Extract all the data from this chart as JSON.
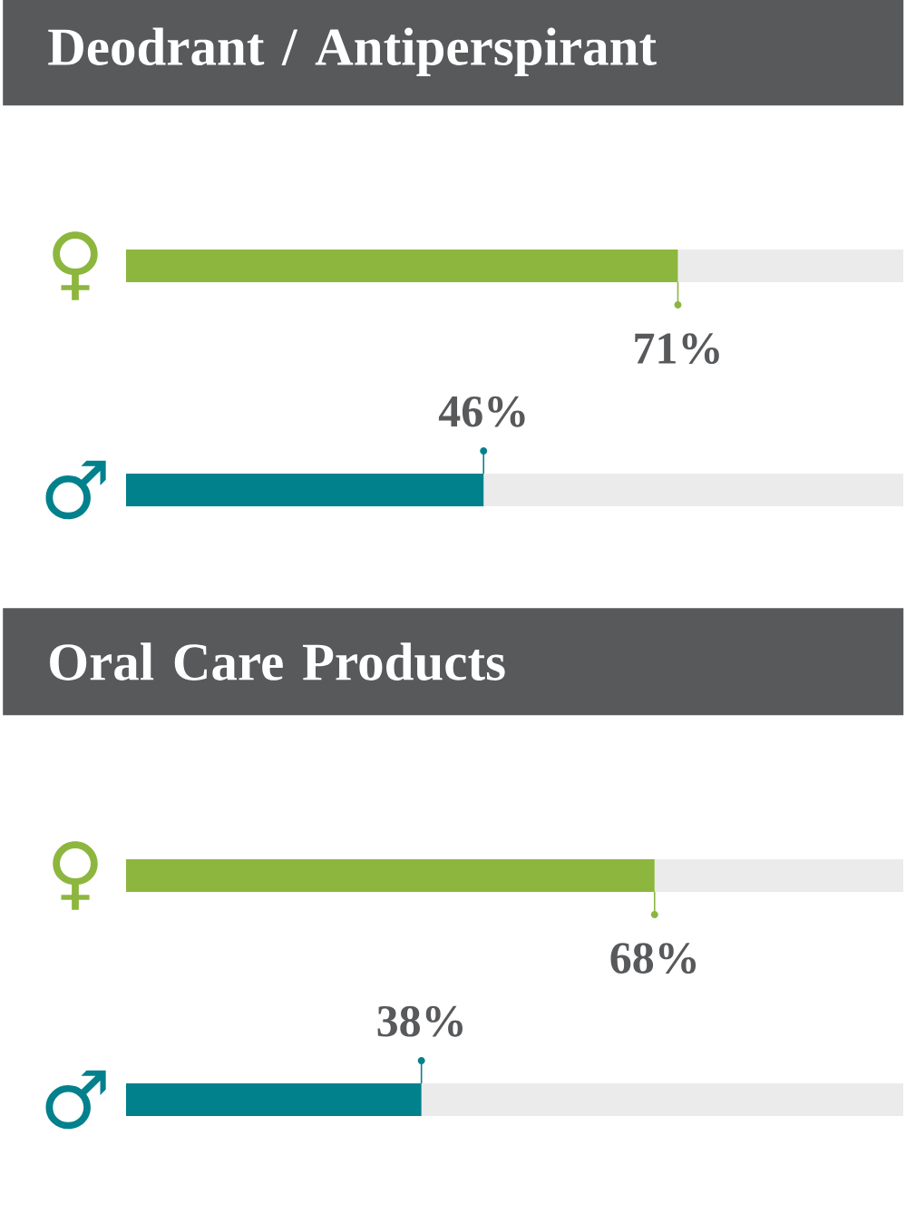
{
  "chart_data": [
    {
      "type": "bar",
      "title": "Deodrant / Antiperspirant",
      "orientation": "horizontal",
      "stacked": true,
      "categories": [
        "♀",
        "♂"
      ],
      "xlim": [
        0,
        100
      ],
      "series": [
        {
          "values": [
            71,
            46
          ],
          "colors": [
            "#8db63f",
            "#00818c"
          ],
          "value_labels": [
            "71%",
            "46%"
          ]
        },
        {
          "values": [
            29,
            54
          ],
          "color": "#ebebeb"
        }
      ]
    },
    {
      "type": "bar",
      "title": "Oral Care Products",
      "orientation": "horizontal",
      "stacked": true,
      "categories": [
        "♀",
        "♂"
      ],
      "xlim": [
        0,
        100
      ],
      "series": [
        {
          "values": [
            68,
            38
          ],
          "colors": [
            "#8db63f",
            "#00818c"
          ],
          "value_labels": [
            "68%",
            "38%"
          ]
        },
        {
          "values": [
            32,
            62
          ],
          "color": "#ebebeb"
        }
      ]
    }
  ]
}
